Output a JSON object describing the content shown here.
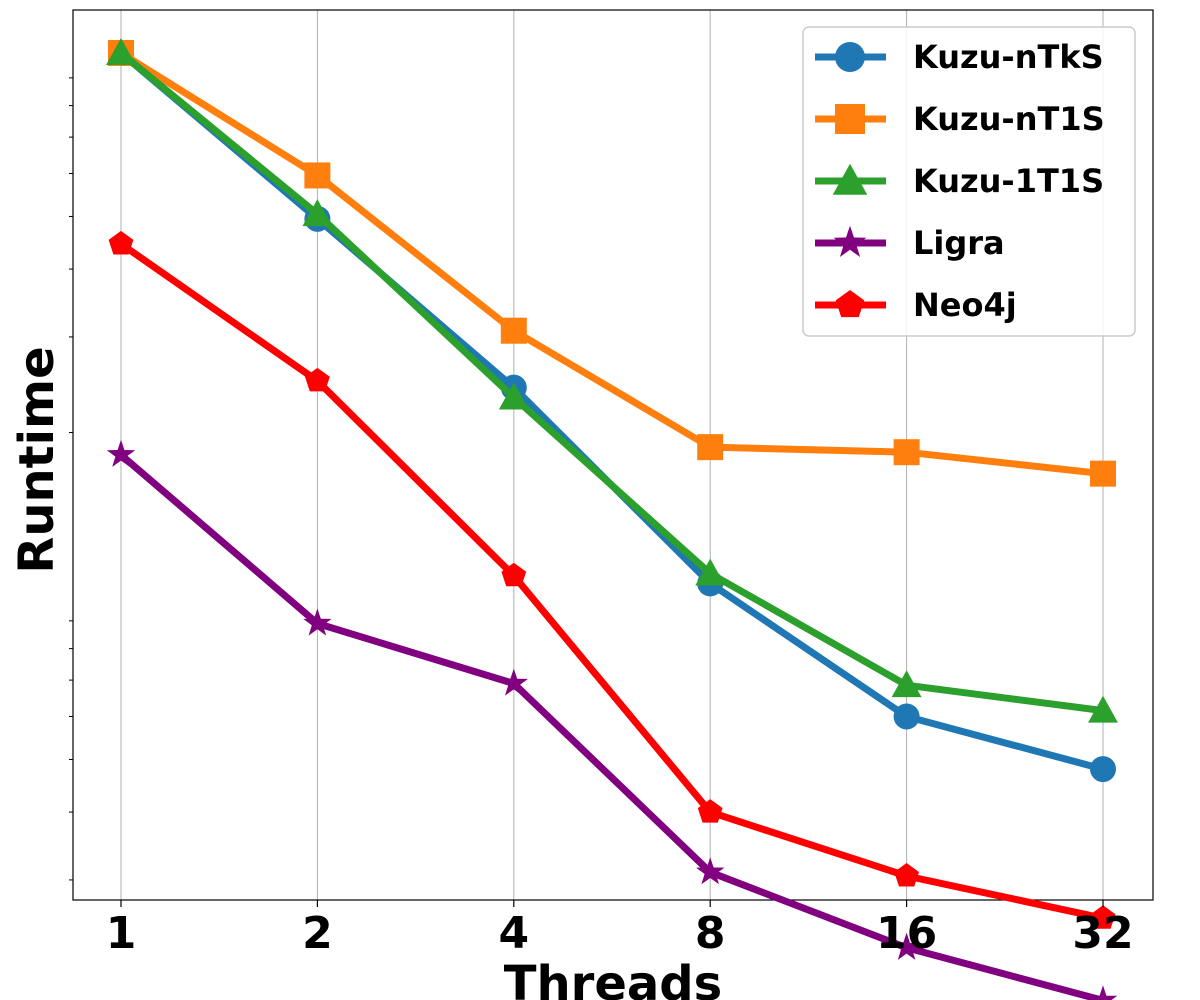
{
  "chart_data": {
    "type": "line",
    "title": "",
    "xlabel": "Threads",
    "ylabel": "Runtime",
    "x": [
      "1",
      "2",
      "4",
      "8",
      "16",
      "32"
    ],
    "y_scale": "log",
    "y_tick_labels_shown": false,
    "grid": "vertical",
    "legend_position": "top-right",
    "series": [
      {
        "name": "Kuzu-nTkS",
        "color": "#1f77b4",
        "marker": "circle",
        "values": [
          100,
          49.5,
          24.2,
          10.55,
          6.0,
          4.8
        ]
      },
      {
        "name": "Kuzu-nT1S",
        "color": "#ff7f0e",
        "marker": "square",
        "values": [
          100,
          59.5,
          30.8,
          18.8,
          18.4,
          16.8
        ]
      },
      {
        "name": "Kuzu-1T1S",
        "color": "#2ca02c",
        "marker": "triangle",
        "values": [
          100,
          50.5,
          23.2,
          11.0,
          6.85,
          6.15
        ]
      },
      {
        "name": "Ligra",
        "color": "#800080",
        "marker": "star",
        "values": [
          18.2,
          8.9,
          6.9,
          3.1,
          2.25,
          1.8
        ]
      },
      {
        "name": "Neo4j",
        "color": "#ff0000",
        "marker": "pentagon",
        "values": [
          44.5,
          24.9,
          10.9,
          4.0,
          3.05,
          2.55
        ]
      }
    ]
  }
}
